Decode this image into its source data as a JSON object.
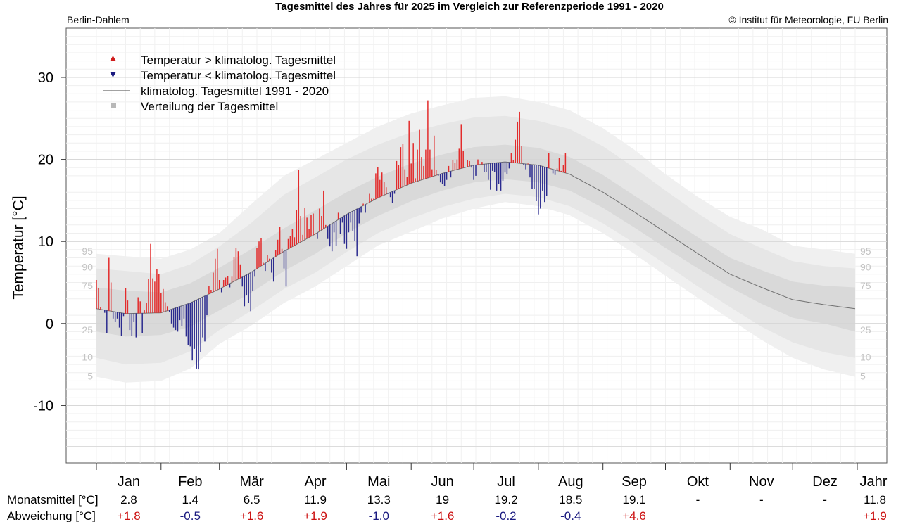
{
  "header": {
    "title": "Tagesmittel des Jahres für 2025 im Vergleich zur Referenzperiode 1991 - 2020",
    "station": "Berlin-Dahlem",
    "copyright": "© Institut für Meteorologie, FU Berlin"
  },
  "colors": {
    "warm": "#e32b2b",
    "cold": "#2b2b8f",
    "climline": "#707070",
    "pos_text": "#cc1111",
    "neg_text": "#1a1a80"
  },
  "chart_data": {
    "type": "bar",
    "title": "Tagesmittel des Jahres für 2025 im Vergleich zur Referenzperiode 1991 - 2020",
    "ylabel": "Temperatur [°C]",
    "ylim": [
      -17,
      36
    ],
    "yticks": [
      -10,
      0,
      10,
      20,
      30
    ],
    "ytick_labels": [
      "-10",
      "0",
      "10",
      "20",
      "30"
    ],
    "legend": {
      "position": "top-left",
      "entries": [
        {
          "symbol": "triangle-up",
          "label": "Temperatur > klimatolog. Tagesmittel"
        },
        {
          "symbol": "triangle-down",
          "label": "Temperatur < klimatolog. Tagesmittel"
        },
        {
          "symbol": "line",
          "label": "klimatolog. Tagesmittel 1991 - 2020"
        },
        {
          "symbol": "square",
          "label": "Verteilung der Tagesmittel"
        }
      ]
    },
    "percentile_labels": [
      "95",
      "90",
      "75",
      "25",
      "10",
      "5"
    ],
    "percentile_label_values": [
      8.8,
      6.9,
      4.6,
      -0.8,
      -4.1,
      -6.4
    ],
    "months": [
      "Jan",
      "Feb",
      "Mär",
      "Apr",
      "Mai",
      "Jun",
      "Jul",
      "Aug",
      "Sep",
      "Okt",
      "Nov",
      "Dez"
    ],
    "year_label": "Jahr",
    "climatology_days": [
      1,
      15,
      32,
      46,
      60,
      75,
      91,
      106,
      121,
      136,
      152,
      167,
      182,
      197,
      213,
      228,
      244,
      259,
      274,
      289,
      305,
      320,
      335,
      350,
      365
    ],
    "climatology_mean": [
      1.8,
      1.2,
      1.3,
      2.5,
      4.2,
      6.2,
      8.8,
      10.9,
      13.3,
      15.3,
      17.1,
      18.3,
      19.3,
      19.7,
      19.3,
      18.2,
      16.0,
      13.6,
      11.1,
      8.6,
      6.0,
      4.4,
      2.9,
      2.3,
      1.8
    ],
    "band_5_95": [
      [
        -6.5,
        8.5
      ],
      [
        -7.2,
        8.2
      ],
      [
        -7.0,
        7.9
      ],
      [
        -5.5,
        9.0
      ],
      [
        -2.5,
        11.0
      ],
      [
        -0.3,
        14.5
      ],
      [
        2.5,
        18.0
      ],
      [
        4.5,
        20.0
      ],
      [
        7.0,
        22.0
      ],
      [
        9.5,
        24.0
      ],
      [
        11.2,
        25.6
      ],
      [
        12.8,
        26.6
      ],
      [
        14.0,
        27.5
      ],
      [
        14.8,
        27.7
      ],
      [
        14.3,
        27.0
      ],
      [
        13.2,
        26.0
      ],
      [
        11.0,
        23.8
      ],
      [
        8.5,
        21.2
      ],
      [
        5.8,
        18.2
      ],
      [
        3.2,
        15.5
      ],
      [
        0.5,
        13.0
      ],
      [
        -2.0,
        11.5
      ],
      [
        -4.2,
        9.5
      ],
      [
        -5.6,
        9.0
      ],
      [
        -6.5,
        8.5
      ]
    ],
    "band_10_90": [
      [
        -4.2,
        6.7
      ],
      [
        -5.0,
        6.4
      ],
      [
        -4.8,
        6.0
      ],
      [
        -3.4,
        7.2
      ],
      [
        -0.8,
        9.4
      ],
      [
        1.5,
        12.2
      ],
      [
        4.2,
        15.7
      ],
      [
        6.2,
        17.8
      ],
      [
        8.7,
        20.0
      ],
      [
        11.0,
        21.8
      ],
      [
        12.8,
        23.3
      ],
      [
        14.2,
        24.3
      ],
      [
        15.2,
        25.1
      ],
      [
        15.8,
        25.3
      ],
      [
        15.4,
        24.7
      ],
      [
        14.3,
        23.7
      ],
      [
        12.2,
        21.6
      ],
      [
        9.8,
        19.0
      ],
      [
        7.2,
        16.2
      ],
      [
        4.6,
        13.5
      ],
      [
        2.0,
        10.9
      ],
      [
        -0.4,
        9.2
      ],
      [
        -2.3,
        7.6
      ],
      [
        -3.5,
        7.0
      ],
      [
        -4.2,
        6.7
      ]
    ],
    "band_25_75": [
      [
        -1.0,
        4.4
      ],
      [
        -1.6,
        4.0
      ],
      [
        -1.4,
        3.8
      ],
      [
        -0.4,
        4.9
      ],
      [
        1.6,
        6.8
      ],
      [
        3.7,
        9.0
      ],
      [
        6.4,
        11.6
      ],
      [
        8.5,
        13.8
      ],
      [
        11.0,
        16.0
      ],
      [
        13.1,
        17.9
      ],
      [
        14.9,
        19.5
      ],
      [
        16.2,
        20.6
      ],
      [
        17.2,
        21.5
      ],
      [
        17.6,
        21.8
      ],
      [
        17.2,
        21.4
      ],
      [
        16.2,
        20.3
      ],
      [
        14.1,
        18.1
      ],
      [
        11.7,
        15.6
      ],
      [
        9.2,
        13.1
      ],
      [
        6.8,
        10.6
      ],
      [
        4.4,
        8.0
      ],
      [
        2.4,
        6.5
      ],
      [
        0.7,
        5.1
      ],
      [
        0.0,
        4.6
      ],
      [
        -1.0,
        4.4
      ]
    ],
    "daily_2025": [
      5.3,
      4.3,
      2.0,
      1.7,
      1.3,
      -1.2,
      8.0,
      5.0,
      0.6,
      0.2,
      0.6,
      -0.5,
      -1.5,
      0.9,
      4.3,
      2.8,
      -0.8,
      -1.5,
      0.2,
      -1.7,
      3.2,
      2.7,
      -1.2,
      1.6,
      2.5,
      5.4,
      9.7,
      5.5,
      5.1,
      6.6,
      6.0,
      3.7,
      4.2,
      2.6,
      2.1,
      1.4,
      0.0,
      -0.5,
      -0.8,
      -1.0,
      0.4,
      -0.3,
      0.6,
      -1.6,
      -2.6,
      -2.8,
      -4.5,
      -3.1,
      -5.5,
      -5.6,
      -3.5,
      -1.7,
      -2.2,
      1.0,
      4.6,
      4.1,
      6.2,
      7.9,
      9.1,
      5.3,
      3.8,
      5.3,
      5.6,
      5.8,
      4.4,
      5.7,
      8.1,
      9.2,
      8.8,
      7.2,
      4.5,
      2.1,
      3.4,
      2.5,
      1.5,
      4.0,
      5.7,
      9.2,
      10.0,
      10.4,
      7.4,
      6.4,
      8.3,
      7.9,
      6.2,
      5.1,
      8.9,
      10.2,
      11.8,
      9.1,
      6.7,
      4.5,
      10.3,
      10.7,
      11.5,
      10.5,
      13.8,
      18.7,
      13.1,
      10.8,
      14.1,
      12.9,
      11.5,
      13.2,
      13.4,
      11.0,
      10.3,
      14.0,
      13.1,
      16.2,
      12.0,
      10.3,
      9.4,
      8.8,
      11.1,
      9.5,
      13.5,
      10.9,
      12.3,
      9.7,
      9.1,
      11.1,
      12.3,
      11.3,
      10.1,
      8.2,
      12.2,
      13.5,
      14.6,
      13.5,
      14.7,
      15.8,
      15.2,
      15.2,
      18.3,
      19.1,
      17.5,
      18.4,
      17.3,
      16.6,
      15.8,
      15.4,
      14.7,
      15.8,
      19.8,
      19.3,
      21.5,
      21.9,
      18.8,
      17.9,
      24.7,
      19.5,
      22.0,
      17.7,
      21.2,
      23.6,
      20.3,
      19.2,
      21.2,
      27.2,
      21.2,
      18.8,
      22.9,
      18.7,
      18.0,
      17.2,
      17.0,
      16.7,
      17.5,
      19.2,
      17.8,
      19.9,
      19.6,
      20.0,
      21.3,
      24.3,
      21.0,
      19.0,
      19.9,
      19.8,
      19.0,
      17.5,
      18.0,
      20.0,
      19.4,
      19.7,
      18.5,
      18.5,
      17.5,
      16.3,
      18.6,
      18.5,
      16.2,
      17.0,
      16.2,
      17.4,
      18.4,
      18.2,
      18.9,
      20.8,
      19.9,
      22.4,
      24.6,
      25.8,
      21.6,
      19.3,
      18.8,
      19.5,
      17.8,
      16.4,
      16.4,
      14.9,
      13.3,
      14.0,
      16.2,
      14.8,
      15.5,
      20.8,
      18.9,
      18.3,
      18.1,
      18.9,
      20.2,
      18.6,
      19.3,
      20.8
    ],
    "monthly_table": {
      "row1_label": "Monatsmittel [°C]",
      "row2_label": "Abweichung [°C]",
      "means": [
        "2.8",
        "1.4",
        "6.5",
        "11.9",
        "13.3",
        "19",
        "19.2",
        "18.5",
        "19.1",
        "-",
        "-",
        "-"
      ],
      "year_mean": "11.8",
      "anomalies": [
        "+1.8",
        "-0.5",
        "+1.6",
        "+1.9",
        "-1.0",
        "+1.6",
        "-0.2",
        "-0.4",
        "+4.6",
        "",
        "",
        ""
      ],
      "year_anomaly": "+1.9"
    }
  }
}
